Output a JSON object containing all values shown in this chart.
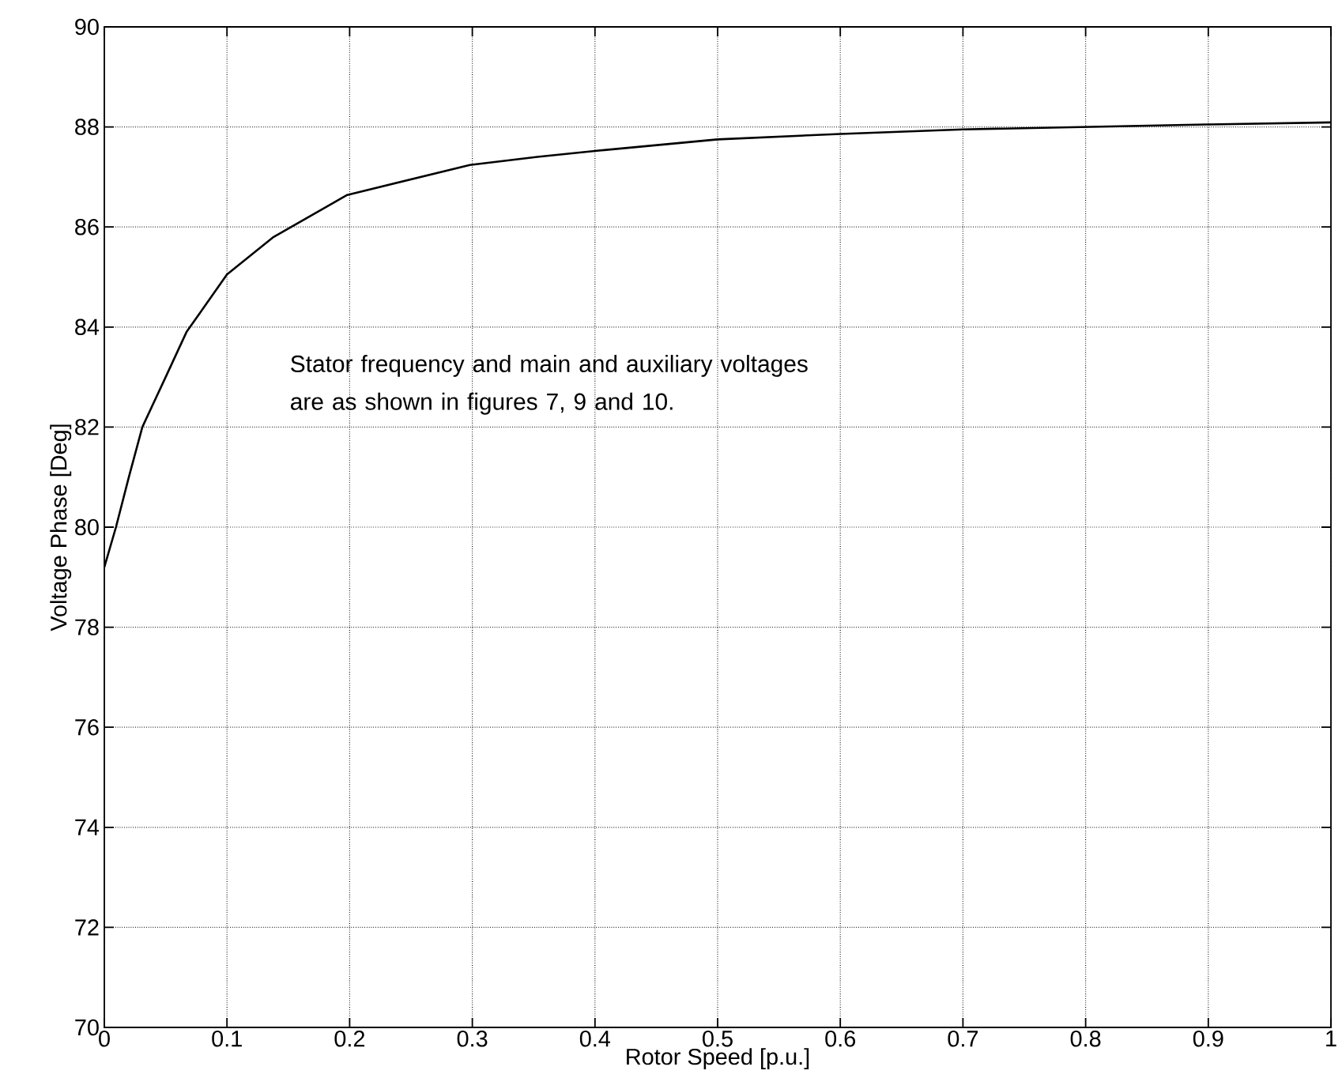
{
  "chart_data": {
    "type": "line",
    "xlabel": "Rotor Speed [p.u.]",
    "ylabel": "Voltage Phase [Deg]",
    "x": [
      0,
      0.0095,
      0.02,
      0.031,
      0.05,
      0.067,
      0.1,
      0.138,
      0.198,
      0.298,
      0.353,
      0.4,
      0.5,
      0.6,
      0.7,
      0.8,
      0.9,
      1.0
    ],
    "series": [
      {
        "color": "#000000",
        "values": [
          79.2,
          80.0,
          81.0,
          82.0,
          83.0,
          83.9,
          85.05,
          85.8,
          86.64,
          87.24,
          87.4,
          87.52,
          87.75,
          87.86,
          87.95,
          88.0,
          88.05,
          88.09
        ]
      }
    ],
    "xlim": [
      0,
      1
    ],
    "ylim": [
      70,
      90
    ],
    "xticks": [
      0,
      0.1,
      0.2,
      0.3,
      0.4,
      0.5,
      0.6,
      0.7,
      0.8,
      0.9,
      1
    ],
    "yticks": [
      70,
      72,
      74,
      76,
      78,
      80,
      82,
      84,
      86,
      88,
      90
    ],
    "grid": true,
    "marker": "none",
    "line_style": "solid",
    "annotations": [
      "Stator frequency and main and auxiliary voltages are as shown in figures 7, 9 and 10."
    ]
  }
}
